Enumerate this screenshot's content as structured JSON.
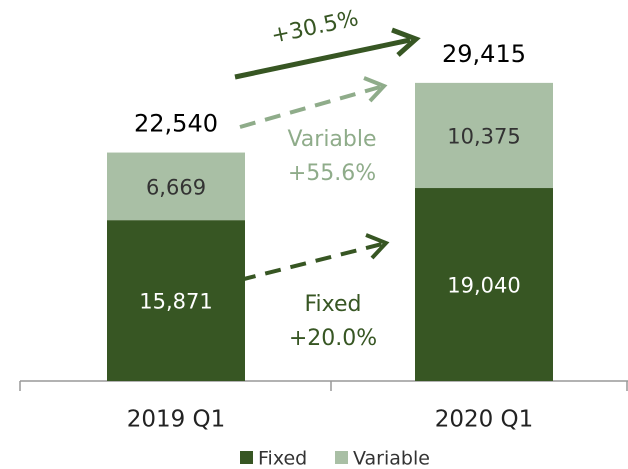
{
  "chart_data": {
    "type": "stacked-bar",
    "categories": [
      "2019 Q1",
      "2020 Q1"
    ],
    "series": [
      {
        "name": "Fixed",
        "color": "#375623",
        "values": [
          15871,
          19040
        ],
        "value_labels": [
          "15,871",
          "19,040"
        ]
      },
      {
        "name": "Variable",
        "color": "#a9bfa5",
        "values": [
          6669,
          10375
        ],
        "value_labels": [
          "6,669",
          "10,375"
        ]
      }
    ],
    "totals": [
      22540,
      29415
    ],
    "total_labels": [
      "22,540",
      "29,415"
    ],
    "annotations": [
      {
        "lines": [
          "+30.5%"
        ],
        "color": "#375623"
      },
      {
        "lines": [
          "Variable",
          "+55.6%"
        ],
        "color": "#8fac8a"
      },
      {
        "lines": [
          "Fixed",
          "+20.0%"
        ],
        "color": "#375623"
      }
    ],
    "ylim": [
      0,
      37000
    ],
    "legend": "bottom"
  }
}
